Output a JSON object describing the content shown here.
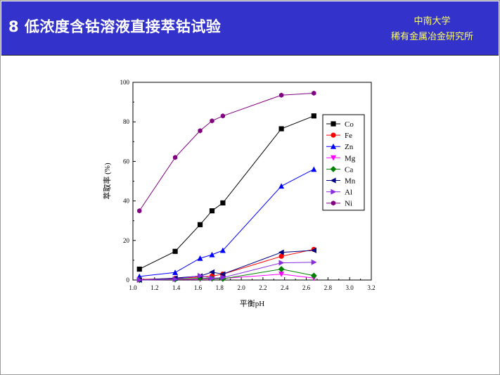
{
  "header": {
    "title": "8 低浓度含钴溶液直接萃钴试验",
    "org_line1": "中南大学",
    "org_line2": "稀有金属冶金研究所"
  },
  "colors": {
    "banner": "#3333cc",
    "title_text": "#ffffff",
    "org_text": "#ffff66"
  },
  "chart_data": {
    "type": "line",
    "xlabel": "平衡pH",
    "ylabel": "萃取率 (%)",
    "xlim": [
      1.0,
      3.2
    ],
    "ylim": [
      0,
      100
    ],
    "xticks": [
      1.0,
      1.2,
      1.4,
      1.6,
      1.8,
      2.0,
      2.2,
      2.4,
      2.6,
      2.8,
      3.0,
      3.2
    ],
    "xtick_labels": [
      "1.0",
      "1.2",
      "1.4",
      "1.6",
      "1.8",
      "2.0",
      "2.2",
      "2.4",
      "2.6",
      "2.8",
      "3.0",
      "3.2"
    ],
    "yticks": [
      0,
      20,
      40,
      60,
      80,
      100
    ],
    "ytick_labels": [
      "0",
      "20",
      "40",
      "60",
      "80",
      "100"
    ],
    "grid": false,
    "legend_position": "right",
    "x": [
      1.06,
      1.39,
      1.62,
      1.73,
      1.83,
      2.37,
      2.67
    ],
    "series": [
      {
        "name": "Co",
        "color": "#000000",
        "marker": "square",
        "values": [
          5.5,
          14.5,
          28,
          35,
          39,
          76.5,
          83
        ]
      },
      {
        "name": "Fe",
        "color": "#ff0000",
        "marker": "circle",
        "values": [
          0.3,
          0.8,
          1.5,
          2.0,
          3.0,
          12.0,
          15.5
        ]
      },
      {
        "name": "Zn",
        "color": "#0000ff",
        "marker": "triangle-up",
        "values": [
          1.8,
          3.8,
          11.0,
          12.8,
          15.0,
          47.5,
          56.0
        ]
      },
      {
        "name": "Mg",
        "color": "#ff00ff",
        "marker": "triangle-down",
        "values": [
          0.0,
          0.2,
          0.4,
          0.5,
          0.8,
          3.0,
          1.0
        ]
      },
      {
        "name": "Ca",
        "color": "#008000",
        "marker": "diamond",
        "values": [
          0.0,
          0.3,
          1.0,
          0.8,
          0.6,
          5.5,
          2.2
        ]
      },
      {
        "name": "Mn",
        "color": "#000080",
        "marker": "triangle-left",
        "values": [
          0.0,
          1.0,
          2.0,
          4.0,
          3.0,
          14.0,
          15.0
        ]
      },
      {
        "name": "Al",
        "color": "#8a2be2",
        "marker": "triangle-right",
        "values": [
          0.0,
          0.4,
          2.2,
          0.9,
          1.2,
          8.7,
          9.0
        ]
      },
      {
        "name": "Ni",
        "color": "#800080",
        "marker": "hexagon",
        "values": [
          35.0,
          62.0,
          75.5,
          80.5,
          83.0,
          93.5,
          94.5
        ]
      }
    ]
  }
}
